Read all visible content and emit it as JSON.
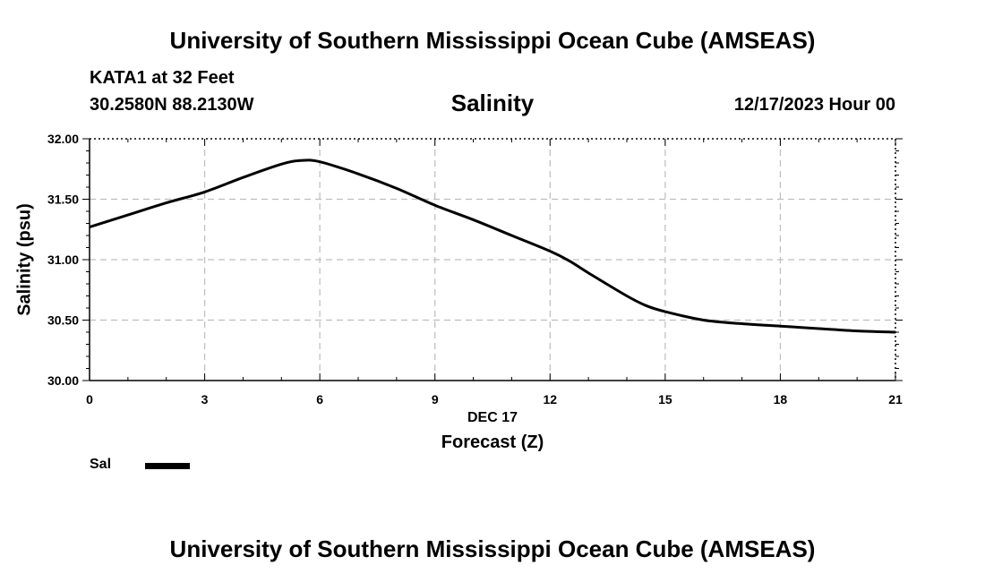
{
  "header": {
    "title": "University of Southern Mississippi Ocean Cube (AMSEAS)",
    "station": "KATA1 at 32 Feet",
    "coords": "30.2580N  88.2130W",
    "parameter": "Salinity",
    "datetime": "12/17/2023 Hour 00"
  },
  "footer": {
    "title": "University of Southern Mississippi Ocean Cube (AMSEAS)"
  },
  "chart_data": {
    "type": "line",
    "title": "Salinity",
    "xlabel": "Forecast (Z)",
    "xsublabel": "DEC 17",
    "ylabel": "Salinity (psu)",
    "xlim": [
      0,
      21
    ],
    "ylim": [
      30.0,
      32.0
    ],
    "xticks": [
      0,
      3,
      6,
      9,
      12,
      15,
      18,
      21
    ],
    "xtick_labels": [
      "0",
      "3",
      "6",
      "9",
      "12",
      "15",
      "18",
      "21"
    ],
    "yticks": [
      30.0,
      30.5,
      31.0,
      31.5,
      32.0
    ],
    "ytick_labels": [
      "30.00",
      "30.50",
      "31.00",
      "31.50",
      "32.00"
    ],
    "grid": true,
    "legend": [
      {
        "name": "Sal",
        "color": "#000000"
      }
    ],
    "series": [
      {
        "name": "Sal",
        "color": "#000000",
        "x": [
          0,
          1,
          2,
          3,
          4,
          5,
          5.5,
          6,
          7,
          8,
          9,
          10,
          11,
          12,
          12.5,
          13,
          14,
          14.5,
          15,
          16,
          17,
          18,
          19,
          20,
          21
        ],
        "y": [
          31.27,
          31.37,
          31.47,
          31.56,
          31.68,
          31.79,
          31.82,
          31.81,
          31.71,
          31.59,
          31.45,
          31.33,
          31.2,
          31.07,
          30.99,
          30.89,
          30.7,
          30.62,
          30.57,
          30.5,
          30.47,
          30.45,
          30.43,
          30.41,
          30.4
        ]
      }
    ]
  }
}
